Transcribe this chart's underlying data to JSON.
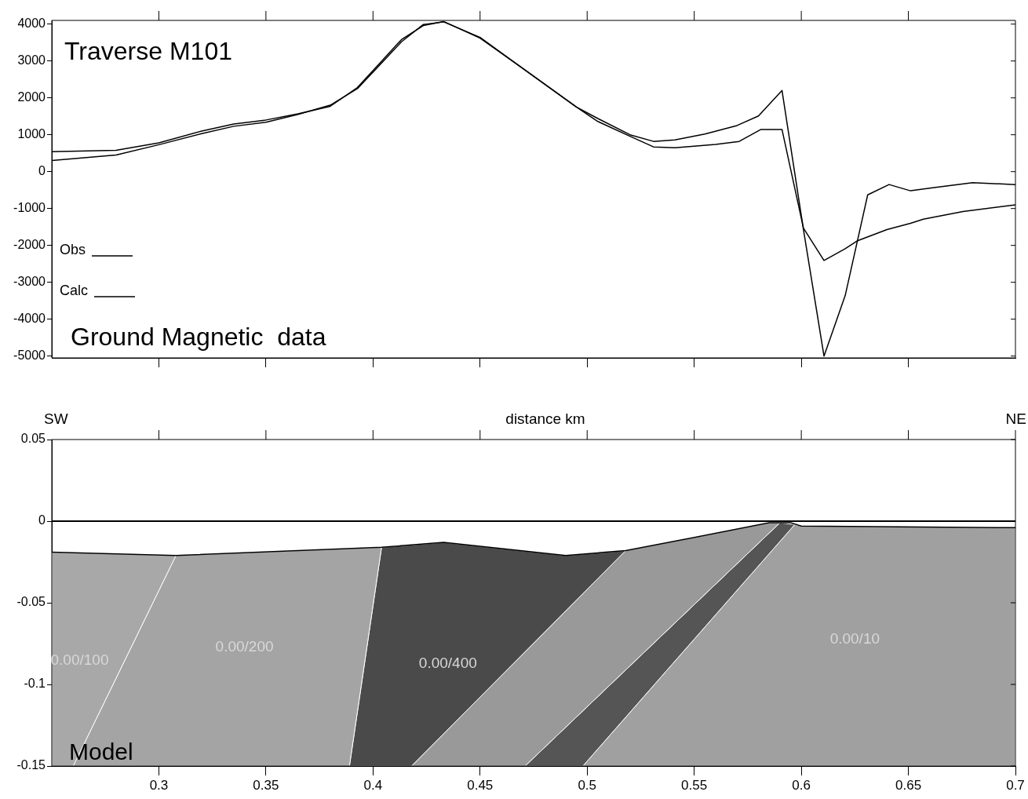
{
  "chart_data": [
    {
      "type": "line",
      "title": "Traverse M101",
      "subtitle": "Ground Magnetic  data",
      "xlim": [
        0.25,
        0.7
      ],
      "xticks": [
        0.3,
        0.35,
        0.4,
        0.45,
        0.5,
        0.55,
        0.6,
        0.65
      ],
      "ylim": [
        -5050,
        4100
      ],
      "yticks": [
        -5000,
        -4000,
        -3000,
        -2000,
        -1000,
        0,
        1000,
        2000,
        3000,
        4000
      ],
      "tick_labels": "y",
      "grid": false,
      "legend": "bottom left",
      "marker": "none",
      "series": [
        {
          "name": "Obs",
          "color": "#000000",
          "line_style": "solid",
          "x": [
            0.25,
            0.28,
            0.3,
            0.32,
            0.335,
            0.35,
            0.365,
            0.38,
            0.3927,
            0.403,
            0.4133,
            0.4235,
            0.433,
            0.45,
            0.4675,
            0.495,
            0.505,
            0.52,
            0.531,
            0.541,
            0.555,
            0.57,
            0.58,
            0.591,
            0.601,
            0.6106,
            0.6205,
            0.631,
            0.641,
            0.651,
            0.662,
            0.68,
            0.7
          ],
          "values": [
            540,
            580,
            780,
            1100,
            1290,
            1400,
            1570,
            1770,
            2280,
            2930,
            3580,
            3960,
            4070,
            3620,
            2900,
            1750,
            1440,
            1000,
            820,
            860,
            1020,
            1250,
            1510,
            2200,
            -1570,
            -5000,
            -3360,
            -630,
            -350,
            -520,
            -430,
            -300,
            -350
          ]
        },
        {
          "name": "Calc",
          "color": "#000000",
          "line_style": "solid",
          "x": [
            0.25,
            0.28,
            0.3,
            0.32,
            0.335,
            0.35,
            0.365,
            0.38,
            0.3927,
            0.403,
            0.4133,
            0.4235,
            0.433,
            0.45,
            0.4675,
            0.495,
            0.505,
            0.52,
            0.531,
            0.541,
            0.55,
            0.56,
            0.571,
            0.581,
            0.591,
            0.601,
            0.6106,
            0.6205,
            0.626,
            0.64,
            0.651,
            0.657,
            0.6755,
            0.7
          ],
          "values": [
            300,
            450,
            730,
            1030,
            1230,
            1340,
            1550,
            1800,
            2250,
            2880,
            3520,
            3990,
            4060,
            3640,
            2900,
            1750,
            1360,
            960,
            670,
            650,
            690,
            740,
            820,
            1140,
            1140,
            -1530,
            -2410,
            -2090,
            -1880,
            -1570,
            -1400,
            -1290,
            -1080,
            -900
          ]
        }
      ]
    },
    {
      "type": "line",
      "title": "Model",
      "xlabel": "distance km",
      "xlim": [
        0.25,
        0.7
      ],
      "xticks": [
        0.3,
        0.35,
        0.4,
        0.45,
        0.5,
        0.55,
        0.6,
        0.65,
        0.7
      ],
      "ylim": [
        -0.15,
        0.05
      ],
      "yticks": [
        -0.15,
        -0.1,
        -0.05,
        0,
        0.05
      ],
      "marker": "none",
      "ref_lines": [
        {
          "axis": "y",
          "value": 0,
          "color": "#000000"
        }
      ],
      "series": [
        {
          "color": "#000000",
          "x": [
            0.25,
            0.308,
            0.404,
            0.433,
            0.49,
            0.518,
            0.55,
            0.585,
            0.595,
            0.6,
            0.7
          ],
          "values": [
            -0.019,
            -0.021,
            -0.016,
            -0.013,
            -0.021,
            -0.018,
            -0.01,
            -0.001,
            -0.001,
            -0.003,
            -0.004
          ]
        },
        {
          "type": "area",
          "color": "#a8a8a8",
          "x": [
            0.25,
            0.308,
            0.26,
            0.25,
            0.25
          ],
          "values": [
            -0.019,
            -0.021,
            -0.15,
            -0.15,
            -0.019
          ]
        },
        {
          "type": "area",
          "color": "#a4a4a4",
          "x": [
            0.308,
            0.404,
            0.389,
            0.26,
            0.308
          ],
          "values": [
            -0.021,
            -0.016,
            -0.15,
            -0.15,
            -0.021
          ]
        },
        {
          "type": "area",
          "color": "#4a4a4a",
          "x": [
            0.404,
            0.433,
            0.49,
            0.518,
            0.418,
            0.389,
            0.404
          ],
          "values": [
            -0.016,
            -0.013,
            -0.021,
            -0.018,
            -0.15,
            -0.15,
            -0.016
          ]
        },
        {
          "type": "area",
          "color": "#999999",
          "x": [
            0.518,
            0.55,
            0.585,
            0.59,
            0.471,
            0.418,
            0.518
          ],
          "values": [
            -0.018,
            -0.01,
            -0.001,
            -0.001,
            -0.15,
            -0.15,
            -0.018
          ]
        },
        {
          "type": "area",
          "color": "#555555",
          "x": [
            0.59,
            0.597,
            0.498,
            0.471,
            0.59
          ],
          "values": [
            -0.001,
            -0.002,
            -0.15,
            -0.15,
            -0.001
          ]
        },
        {
          "type": "area",
          "color": "#a0a0a0",
          "x": [
            0.597,
            0.6,
            0.7,
            0.7,
            0.498,
            0.597
          ],
          "values": [
            -0.002,
            -0.003,
            -0.004,
            -0.15,
            -0.15,
            -0.002
          ]
        }
      ],
      "annotations": [
        "SW",
        "NE",
        "0.00/100",
        "0.00/200",
        "0.00/400",
        "0.00/10"
      ]
    }
  ]
}
